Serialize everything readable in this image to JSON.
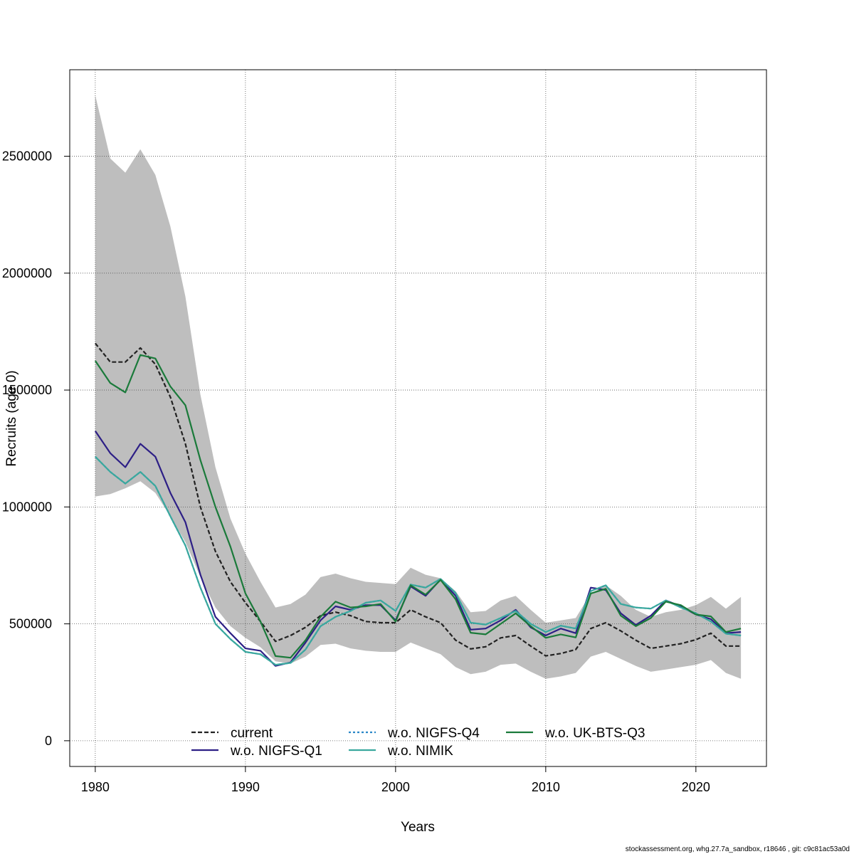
{
  "footer": "stockassessment.org, whg.27.7a_sandbox, r18646 , git: c9c81ac53a0d",
  "chart_data": {
    "type": "line",
    "xlabel": "Years",
    "ylabel": "Recruits (age 0)",
    "xlim": [
      1978.3,
      2024.7
    ],
    "ylim": [
      -110000,
      2870000
    ],
    "xticks": [
      1980,
      1990,
      2000,
      2010,
      2020
    ],
    "yticks": [
      0,
      500000,
      1000000,
      1500000,
      2000000,
      2500000
    ],
    "ytick_labels": [
      "0",
      "500000",
      "1000000",
      "1500000",
      "2000000",
      "2500000"
    ],
    "grid": true,
    "legend_position": "bottom",
    "years": [
      1980,
      1981,
      1982,
      1983,
      1984,
      1985,
      1986,
      1987,
      1988,
      1989,
      1990,
      1991,
      1992,
      1993,
      1994,
      1995,
      1996,
      1997,
      1998,
      1999,
      2000,
      2001,
      2002,
      2003,
      2004,
      2005,
      2006,
      2007,
      2008,
      2009,
      2010,
      2011,
      2012,
      2013,
      2014,
      2015,
      2016,
      2017,
      2018,
      2019,
      2020,
      2021,
      2022,
      2023
    ],
    "band": {
      "name": "confidence interval",
      "color": "#bebebe",
      "upper": [
        2760000,
        2490000,
        2430000,
        2530000,
        2420000,
        2200000,
        1900000,
        1480000,
        1170000,
        950000,
        800000,
        680000,
        570000,
        585000,
        625000,
        700000,
        715000,
        695000,
        680000,
        675000,
        670000,
        740000,
        710000,
        695000,
        640000,
        550000,
        555000,
        600000,
        620000,
        560000,
        505000,
        515000,
        525000,
        630000,
        665000,
        620000,
        560000,
        530000,
        550000,
        560000,
        580000,
        615000,
        565000,
        615000
      ],
      "lower": [
        1045000,
        1055000,
        1080000,
        1110000,
        1060000,
        960000,
        850000,
        700000,
        570000,
        490000,
        440000,
        400000,
        340000,
        330000,
        360000,
        410000,
        415000,
        395000,
        385000,
        380000,
        380000,
        420000,
        395000,
        370000,
        315000,
        285000,
        295000,
        325000,
        330000,
        295000,
        265000,
        275000,
        290000,
        360000,
        380000,
        350000,
        320000,
        295000,
        305000,
        315000,
        325000,
        345000,
        290000,
        265000
      ]
    },
    "series": [
      {
        "name": "current",
        "color": "#222222",
        "dash": "6,3",
        "values": [
          1700000,
          1620000,
          1620000,
          1680000,
          1610000,
          1470000,
          1270000,
          1000000,
          810000,
          680000,
          590000,
          510000,
          425000,
          450000,
          485000,
          535000,
          550000,
          535000,
          510000,
          505000,
          505000,
          560000,
          530000,
          505000,
          430000,
          393000,
          402000,
          440000,
          450000,
          405000,
          363000,
          373000,
          390000,
          480000,
          505000,
          470000,
          430000,
          395000,
          405000,
          415000,
          432000,
          460000,
          405000,
          405000
        ]
      },
      {
        "name": "w.o. NIGFS-Q1",
        "color": "#2d1f86",
        "dash": "",
        "values": [
          1325000,
          1230000,
          1170000,
          1270000,
          1215000,
          1060000,
          935000,
          710000,
          530000,
          460000,
          395000,
          385000,
          320000,
          335000,
          420000,
          515000,
          575000,
          560000,
          580000,
          580000,
          515000,
          660000,
          620000,
          690000,
          620000,
          475000,
          480000,
          515000,
          560000,
          485000,
          450000,
          480000,
          460000,
          655000,
          645000,
          545000,
          495000,
          535000,
          600000,
          575000,
          540000,
          520000,
          460000,
          465000
        ]
      },
      {
        "name": "w.o. NIGFS-Q4",
        "color": "#2b88c8",
        "dash": "3,3",
        "values": [
          1215000,
          1150000,
          1100000,
          1150000,
          1090000,
          960000,
          835000,
          655000,
          500000,
          435000,
          380000,
          370000,
          325000,
          333000,
          390000,
          490000,
          530000,
          555000,
          590000,
          600000,
          555000,
          668000,
          655000,
          692000,
          632000,
          505000,
          497000,
          525000,
          555000,
          500000,
          465000,
          492000,
          480000,
          640000,
          665000,
          585000,
          570000,
          565000,
          600000,
          570000,
          545000,
          510000,
          458000,
          450000
        ]
      },
      {
        "name": "w.o. NIMIK",
        "color": "#3aa89e",
        "dash": "",
        "values": [
          1215000,
          1150000,
          1100000,
          1150000,
          1090000,
          960000,
          835000,
          655000,
          500000,
          435000,
          380000,
          370000,
          325000,
          333000,
          390000,
          490000,
          530000,
          555000,
          590000,
          600000,
          555000,
          668000,
          655000,
          692000,
          632000,
          505000,
          497000,
          525000,
          555000,
          500000,
          465000,
          492000,
          480000,
          640000,
          665000,
          585000,
          570000,
          565000,
          600000,
          570000,
          545000,
          510000,
          458000,
          450000
        ]
      },
      {
        "name": "w.o. UK-BTS-Q3",
        "color": "#1a7a3a",
        "dash": "",
        "values": [
          1625000,
          1530000,
          1490000,
          1650000,
          1635000,
          1515000,
          1435000,
          1200000,
          1000000,
          830000,
          630000,
          510000,
          362000,
          355000,
          430000,
          530000,
          595000,
          570000,
          575000,
          585000,
          510000,
          665000,
          625000,
          688000,
          605000,
          462000,
          455000,
          500000,
          545000,
          490000,
          440000,
          455000,
          442000,
          630000,
          650000,
          535000,
          490000,
          525000,
          595000,
          580000,
          540000,
          532000,
          465000,
          480000
        ]
      }
    ],
    "legend_order": [
      "current",
      "w.o. NIGFS-Q1",
      "w.o. NIGFS-Q4",
      "w.o. NIMIK",
      "w.o. UK-BTS-Q3"
    ]
  }
}
